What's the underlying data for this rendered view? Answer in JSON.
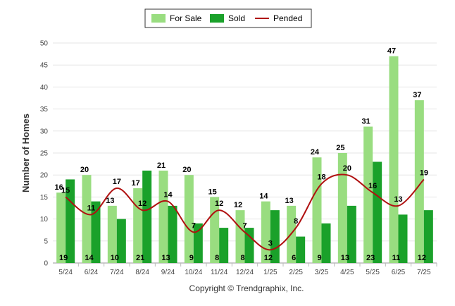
{
  "chart_data": {
    "type": "bar",
    "categories": [
      "5/24",
      "6/24",
      "7/24",
      "8/24",
      "9/24",
      "10/24",
      "11/24",
      "12/24",
      "1/25",
      "2/25",
      "3/25",
      "4/25",
      "5/25",
      "6/25",
      "7/25"
    ],
    "series": [
      {
        "name": "For Sale",
        "type": "bar",
        "color": "#99dd80",
        "values": [
          16,
          20,
          13,
          17,
          21,
          20,
          15,
          12,
          14,
          13,
          24,
          25,
          31,
          47,
          37
        ]
      },
      {
        "name": "Sold",
        "type": "bar",
        "color": "#1aa12a",
        "values": [
          19,
          14,
          10,
          21,
          13,
          9,
          8,
          8,
          12,
          6,
          9,
          13,
          23,
          11,
          12
        ]
      },
      {
        "name": "Pended",
        "type": "line",
        "color": "#b01010",
        "values": [
          15,
          11,
          17,
          12,
          14,
          7,
          12,
          7,
          3,
          8,
          18,
          20,
          16,
          13,
          19
        ]
      }
    ],
    "ylabel": "Number of Homes",
    "ylim": [
      0,
      50
    ],
    "yticks": [
      0,
      5,
      10,
      15,
      20,
      25,
      30,
      35,
      40,
      45,
      50
    ],
    "grid": true,
    "legend_position": "top-center",
    "credit": "Copyright © Trendgraphix, Inc."
  }
}
